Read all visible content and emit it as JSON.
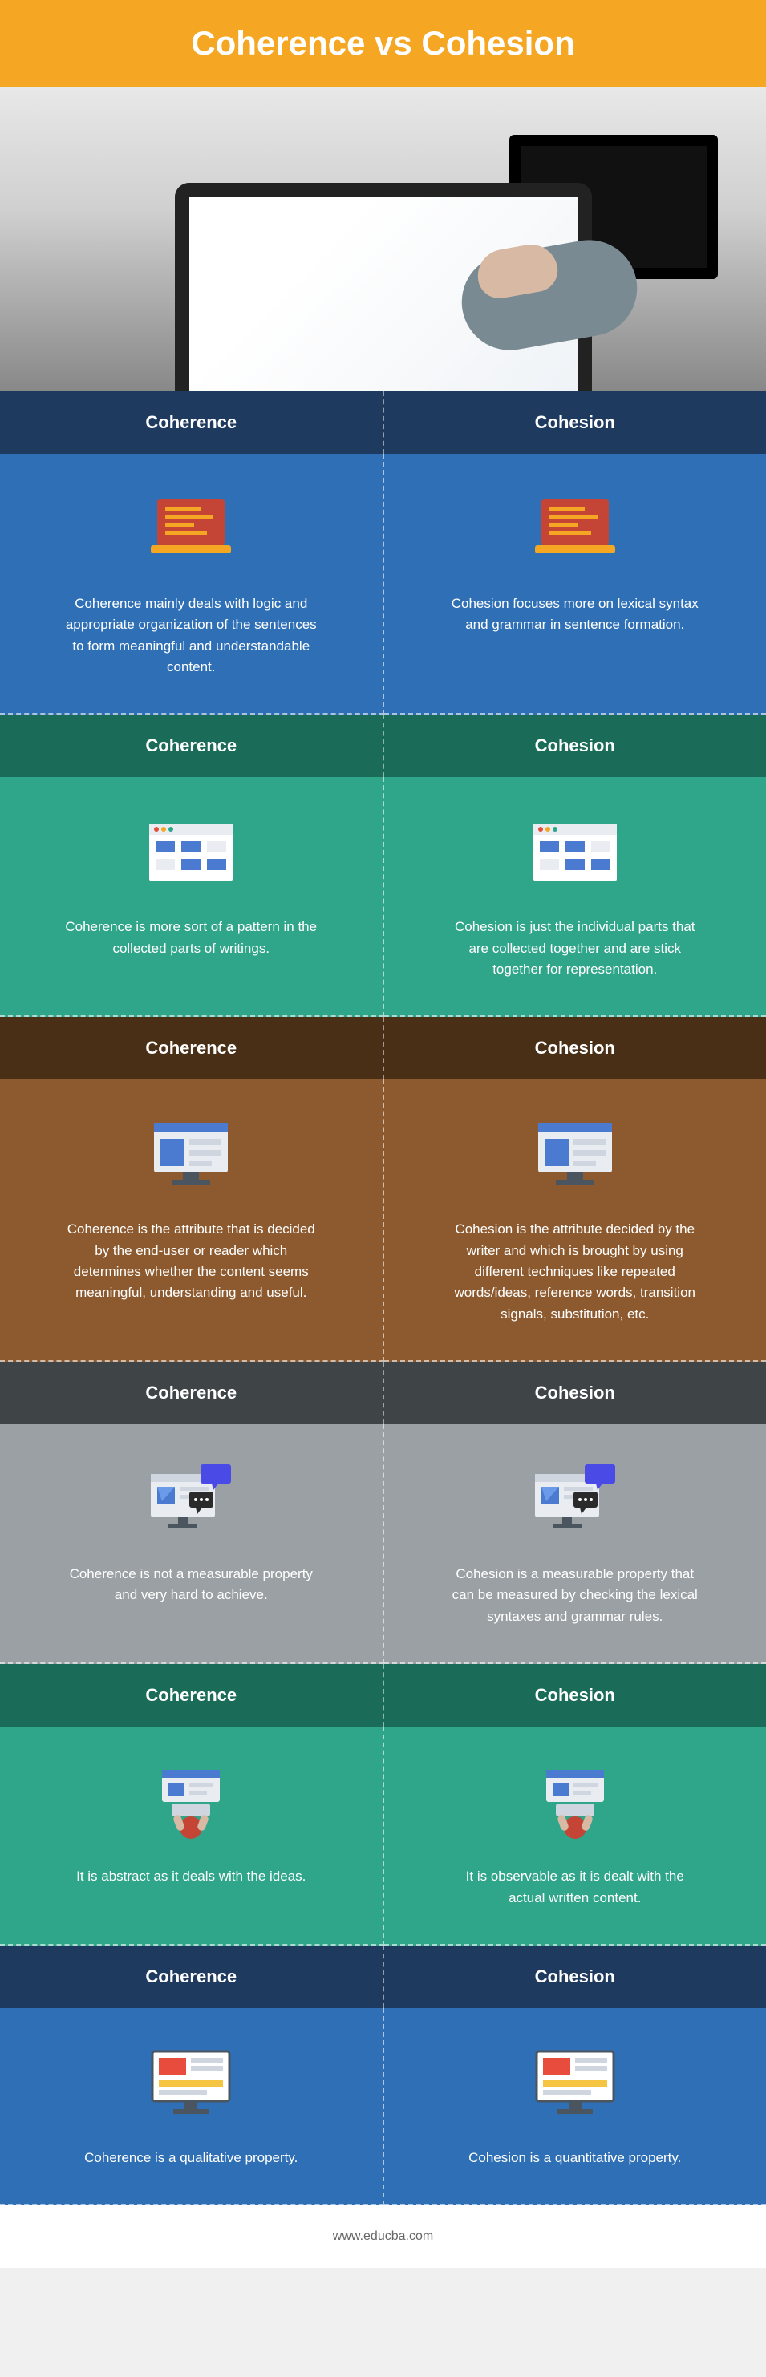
{
  "title": "Coherence vs Cohesion",
  "footer": "www.educba.com",
  "left_label": "Coherence",
  "right_label": "Cohesion",
  "sections": [
    {
      "header_bg": "#1f3a5f",
      "body_bg": "#2e6fb5",
      "left": "Coherence mainly deals with logic and appropriate organization of the sentences to form meaningful and understandable content.",
      "right": "Cohesion focuses more on lexical syntax and grammar in sentence formation."
    },
    {
      "header_bg": "#1a6b58",
      "body_bg": "#2fa58a",
      "left": "Coherence is more sort of a pattern in the collected parts of writings.",
      "right": "Cohesion is just the individual parts that are collected together and are stick together for representation."
    },
    {
      "header_bg": "#4a2f17",
      "body_bg": "#8c5a2e",
      "left": "Coherence is the attribute that is decided by the end-user or reader which determines whether the content seems meaningful, understanding and useful.",
      "right": "Cohesion is the attribute decided by the writer and which is brought by using different techniques like repeated words/ideas, reference words, transition signals, substitution, etc."
    },
    {
      "header_bg": "#3f4447",
      "body_bg": "#9aa0a4",
      "left": "Coherence is not a measurable property and very hard to achieve.",
      "right": "Cohesion is a measurable property that can be measured by checking the lexical syntaxes and grammar rules."
    },
    {
      "header_bg": "#1a6b58",
      "body_bg": "#2fa58a",
      "left": "It is abstract as it deals with the ideas.",
      "right": "It is observable as it is dealt with the actual written content."
    },
    {
      "header_bg": "#1f3a5f",
      "body_bg": "#2e6fb5",
      "left": "Coherence is a qualitative property.",
      "right": "Cohesion is a quantitative property."
    }
  ],
  "icons": {
    "laptop_code": "<svg viewBox='0 0 120 100'><rect x='18' y='12' width='84' height='58' rx='4' fill='#c44536'/><rect x='10' y='70' width='100' height='10' rx='3' fill='#f5a623'/><rect x='28' y='22' width='44' height='5' fill='#f5a623'/><rect x='28' y='32' width='60' height='5' fill='#f5a623'/><rect x='28' y='42' width='36' height='5' fill='#f5a623'/><rect x='28' y='52' width='52' height='5' fill='#f5a623'/></svg>",
    "browser_tiles": "<svg viewBox='0 0 120 100'><rect x='8' y='14' width='104' height='72' rx='3' fill='#fff'/><rect x='8' y='14' width='104' height='14' fill='#e9edf2'/><circle cx='17' cy='21' r='3' fill='#e74c3c'/><circle cx='26' cy='21' r='3' fill='#f5a623'/><circle cx='35' cy='21' r='3' fill='#2fa58a'/><rect x='16' y='36' width='24' height='14' fill='#4a7bd0'/><rect x='48' y='36' width='24' height='14' fill='#4a7bd0'/><rect x='80' y='36' width='24' height='14' fill='#e9edf2'/><rect x='16' y='58' width='24' height='14' fill='#e9edf2'/><rect x='48' y='58' width='24' height='14' fill='#4a7bd0'/><rect x='80' y='58' width='24' height='14' fill='#4a7bd0'/></svg>",
    "monitor_window": "<svg viewBox='0 0 120 100'><rect x='14' y='10' width='92' height='62' rx='3' fill='#e9edf2'/><rect x='14' y='10' width='92' height='12' fill='#4a7bd0'/><rect x='22' y='30' width='30' height='34' fill='#4a7bd0'/><rect x='58' y='30' width='40' height='8' fill='#cfd6df'/><rect x='58' y='44' width='40' height='8' fill='#cfd6df'/><rect x='58' y='58' width='28' height='6' fill='#cfd6df'/><rect x='50' y='72' width='20' height='10' fill='#4a5560'/><rect x='36' y='82' width='48' height='6' fill='#4a5560'/></svg>",
    "monitor_chat": "<svg viewBox='0 0 120 100'><rect x='10' y='18' width='80' height='54' rx='3' fill='#e9edf2'/><rect x='10' y='18' width='80' height='10' fill='#cfd6df'/><rect x='18' y='34' width='22' height='22' fill='#4a7bd0'/><polygon points='18,34 40,34 24,52' fill='#6a9be8'/><rect x='46' y='34' width='36' height='5' fill='#cfd6df'/><rect x='46' y='44' width='36' height='5' fill='#cfd6df'/><rect x='44' y='72' width='12' height='8' fill='#4a5560'/><rect x='32' y='80' width='36' height='5' fill='#4a5560'/><rect x='72' y='6' width='38' height='24' rx='3' fill='#4a4ae6'/><polygon points='86,30 94,30 88,38' fill='#4a4ae6'/><rect x='58' y='40' width='30' height='20' rx='3' fill='#2b2b2b'/><polygon points='66,60 74,60 68,68' fill='#2b2b2b'/><circle cx='66' cy='50' r='2' fill='#fff'/><circle cx='73' cy='50' r='2' fill='#fff'/><circle cx='80' cy='50' r='2' fill='#fff'/></svg>",
    "topdown_desk": "<svg viewBox='0 0 120 100'><rect x='24' y='10' width='72' height='40' rx='3' fill='#e9edf2'/><rect x='24' y='10' width='72' height='10' fill='#4a7bd0'/><rect x='32' y='26' width='20' height='16' fill='#4a7bd0'/><rect x='58' y='26' width='30' height='5' fill='#cfd6df'/><rect x='58' y='36' width='22' height='5' fill='#cfd6df'/><rect x='36' y='52' width='48' height='16' rx='3' fill='#cfd6df'/><circle cx='60' cy='82' r='14' fill='#c44536'/><rect x='40' y='66' width='10' height='20' rx='5' fill='#d8b9a3' transform='rotate(-20 45 76)'/><rect x='70' y='66' width='10' height='20' rx='5' fill='#d8b9a3' transform='rotate(20 75 76)'/></svg>",
    "monitor_dash": "<svg viewBox='0 0 120 100'><rect x='12' y='10' width='96' height='62' rx='3' fill='#fff'/><rect x='12' y='10' width='96' height='62' rx='3' fill='none' stroke='#4a5560' stroke-width='3'/><rect x='20' y='18' width='34' height='22' fill='#e74c3c'/><rect x='60' y='18' width='40' height='6' fill='#cfd6df'/><rect x='60' y='28' width='40' height='6' fill='#cfd6df'/><rect x='20' y='46' width='80' height='8' fill='#f5c542'/><rect x='20' y='58' width='60' height='6' fill='#cfd6df'/><rect x='52' y='72' width='16' height='10' fill='#4a5560'/><rect x='38' y='82' width='44' height='6' fill='#4a5560'/></svg>"
  },
  "section_icons": [
    "laptop_code",
    "browser_tiles",
    "monitor_window",
    "monitor_chat",
    "topdown_desk",
    "monitor_dash"
  ]
}
